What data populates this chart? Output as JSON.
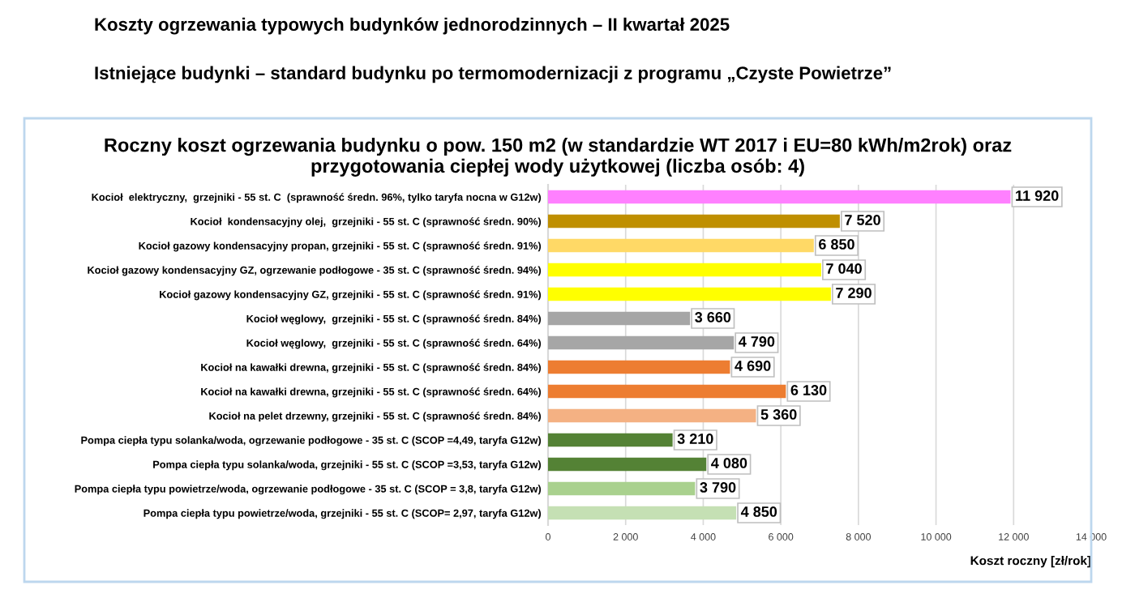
{
  "chart_data": {
    "type": "bar",
    "orientation": "horizontal",
    "title": "Roczny koszt ogrzewania budynku o pow. 150 m2 (w standardzie WT 2017 i EU=80 kWh/m2rok) oraz\nprzygotowania ciepłej wody użytkowej (liczba osób: 4)",
    "annotations": [
      "Koszty ogrzewania typowych budynków jednorodzinnych – II kwartał 2025",
      "Istniejące budynki – standard budynku po termomodernizacji z programu „Czyste Powietrze”"
    ],
    "xlabel": "Koszt roczny [zł/rok]",
    "categories": [
      "Kocioł  elektryczny,  grzejniki - 55 st. C  (sprawność średn. 96%, tylko taryfa nocna w G12w)",
      "Kocioł  kondensacyjny olej,  grzejniki - 55 st. C (sprawność średn. 90%)",
      "Kocioł gazowy kondensacyjny propan, grzejniki - 55 st. C (sprawność średn. 91%)",
      "Kocioł gazowy kondensacyjny GZ, ogrzewanie podłogowe - 35 st. C (sprawność średn. 94%)",
      "Kocioł gazowy kondensacyjny GZ, grzejniki - 55 st. C (sprawność średn. 91%)",
      "Kocioł węglowy,  grzejniki - 55 st. C (sprawność średn. 84%)",
      "Kocioł węglowy,  grzejniki - 55 st. C (sprawność średn. 64%)",
      "Kocioł na kawałki drewna, grzejniki - 55 st. C (sprawność średn. 84%)",
      "Kocioł na kawałki drewna, grzejniki - 55 st. C (sprawność średn. 64%)",
      "Kocioł na pelet drzewny, grzejniki - 55 st. C (sprawność średn. 84%)",
      "Pompa ciepła typu solanka/woda, ogrzewanie podłogowe - 35 st. C (SCOP =4,49, taryfa G12w)",
      "Pompa ciepła typu solanka/woda, grzejniki - 55 st. C (SCOP =3,53, taryfa G12w)",
      "Pompa ciepła typu powietrze/woda, ogrzewanie podłogowe - 35 st. C (SCOP = 3,8, taryfa G12w)",
      "Pompa ciepła typu powietrze/woda, grzejniki - 55 st. C (SCOP= 2,97, taryfa G12w)"
    ],
    "values": [
      11920,
      7520,
      6850,
      7040,
      7290,
      3660,
      4790,
      4690,
      6130,
      5360,
      3210,
      4080,
      3790,
      4850
    ],
    "value_labels": [
      "11 920",
      "7 520",
      "6 850",
      "7 040",
      "7 290",
      "3 660",
      "4 790",
      "4 690",
      "6 130",
      "5 360",
      "3 210",
      "4 080",
      "3 790",
      "4 850"
    ],
    "colors": [
      "#ff80ff",
      "#bf8f00",
      "#ffd966",
      "#ffff00",
      "#ffff00",
      "#a6a6a6",
      "#a6a6a6",
      "#ed7d31",
      "#ed7d31",
      "#f4b183",
      "#548235",
      "#548235",
      "#a9d18e",
      "#c5e0b4"
    ],
    "xlim": [
      0,
      14000
    ],
    "xticks": [
      {
        "value": 0,
        "label": "0"
      },
      {
        "value": 2000,
        "label": "2 000"
      },
      {
        "value": 4000,
        "label": "4 000"
      },
      {
        "value": 6000,
        "label": "6 000"
      },
      {
        "value": 8000,
        "label": "8 000"
      },
      {
        "value": 10000,
        "label": "10 000"
      },
      {
        "value": 12000,
        "label": "12 000"
      },
      {
        "value": 14000,
        "label": "14 000"
      }
    ],
    "grid": "x",
    "legend": false
  }
}
